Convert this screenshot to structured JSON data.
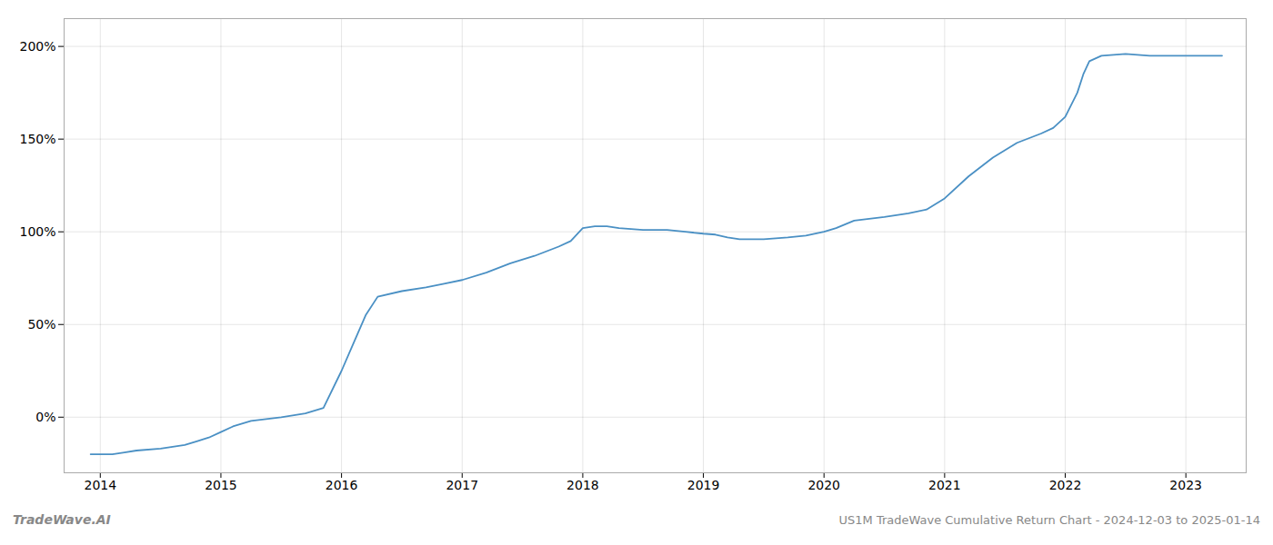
{
  "chart_data": {
    "type": "line",
    "title": "US1M TradeWave Cumulative Return Chart - 2024-12-03 to 2025-01-14",
    "annotations": [
      "TradeWave.AI"
    ],
    "color": "#4a90c4",
    "x": [
      2013.92,
      2014.0,
      2014.1,
      2014.2,
      2014.3,
      2014.5,
      2014.6,
      2014.7,
      2014.8,
      2014.9,
      2015.0,
      2015.1,
      2015.25,
      2015.5,
      2015.7,
      2015.85,
      2016.0,
      2016.1,
      2016.2,
      2016.3,
      2016.5,
      2016.7,
      2016.85,
      2017.0,
      2017.2,
      2017.4,
      2017.6,
      2017.8,
      2017.9,
      2018.0,
      2018.1,
      2018.2,
      2018.3,
      2018.5,
      2018.7,
      2018.85,
      2019.0,
      2019.1,
      2019.2,
      2019.3,
      2019.5,
      2019.7,
      2019.85,
      2020.0,
      2020.1,
      2020.25,
      2020.5,
      2020.7,
      2020.85,
      2021.0,
      2021.2,
      2021.4,
      2021.6,
      2021.8,
      2021.9,
      2022.0,
      2022.1,
      2022.15,
      2022.2,
      2022.3,
      2022.5,
      2022.7,
      2022.85,
      2023.0,
      2023.1,
      2023.2,
      2023.3
    ],
    "values": [
      -20,
      -20,
      -20,
      -19,
      -18,
      -17,
      -16,
      -15,
      -13,
      -11,
      -8,
      -5,
      -2,
      0,
      2,
      5,
      25,
      40,
      55,
      65,
      68,
      70,
      72,
      74,
      78,
      83,
      87,
      92,
      95,
      102,
      103,
      103,
      102,
      101,
      101,
      100,
      99,
      98.5,
      97,
      96,
      96,
      97,
      98,
      100,
      102,
      106,
      108,
      110,
      112,
      118,
      130,
      140,
      148,
      153,
      156,
      162,
      175,
      185,
      192,
      195,
      196,
      195,
      195,
      195,
      195,
      195,
      195
    ],
    "xlim": [
      2013.7,
      2023.5
    ],
    "ylim": [
      -30,
      215
    ],
    "xticks": [
      2014,
      2015,
      2016,
      2017,
      2018,
      2019,
      2020,
      2021,
      2022,
      2023
    ],
    "yticks": [
      {
        "value": 0,
        "label": "0%"
      },
      {
        "value": 50,
        "label": "50%"
      },
      {
        "value": 100,
        "label": "100%"
      },
      {
        "value": 150,
        "label": "150%"
      },
      {
        "value": 200,
        "label": "200%"
      }
    ],
    "grid": true
  }
}
